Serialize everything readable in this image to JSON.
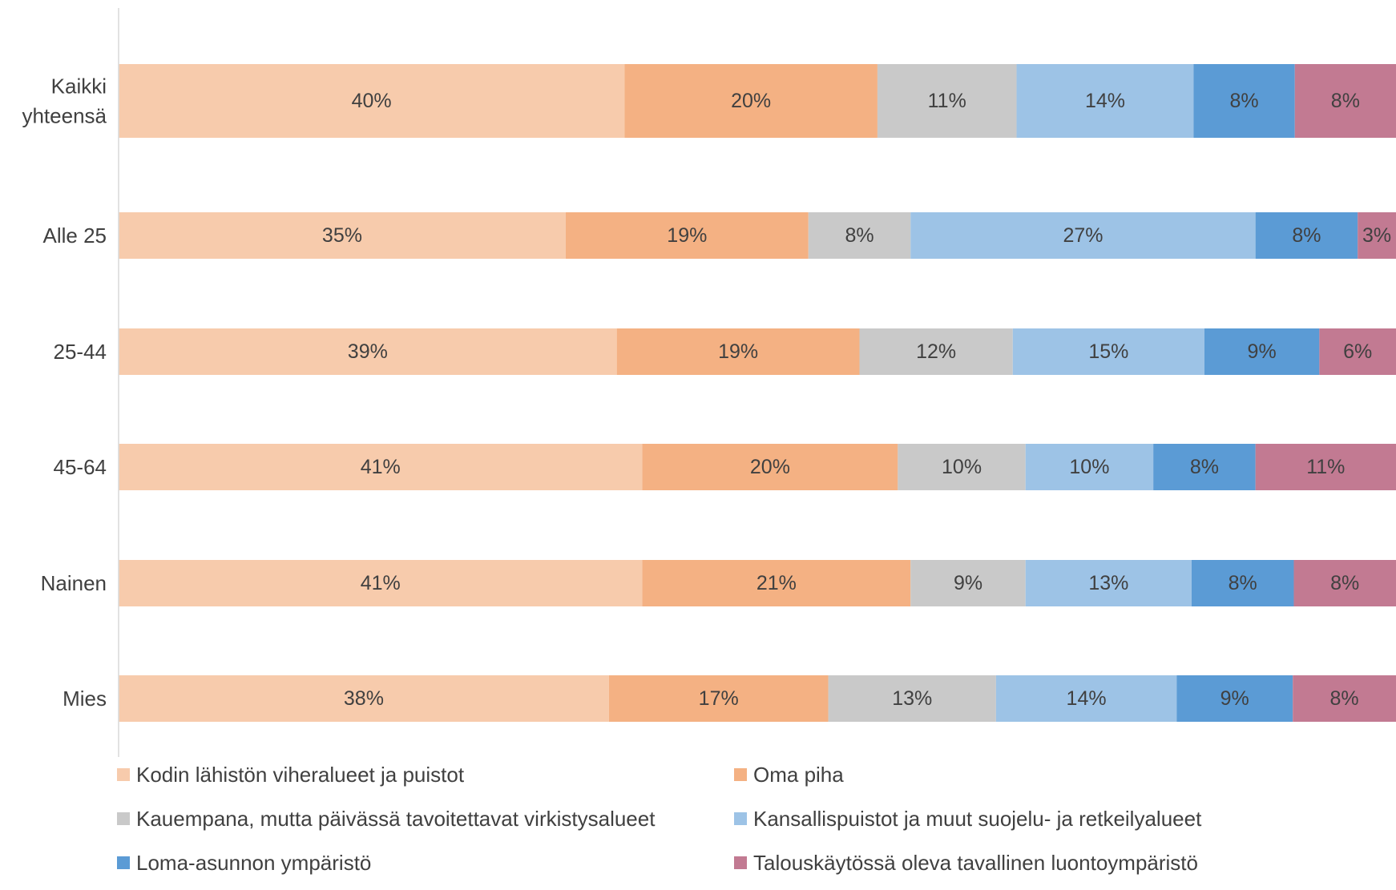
{
  "chart_data": {
    "type": "bar",
    "orientation": "horizontal",
    "stacked": true,
    "normalized": true,
    "categories": [
      "Kaikki yhteensä",
      "Alle 25",
      "25-44",
      "45-64",
      "Nainen",
      "Mies"
    ],
    "category_lines": [
      [
        "Kaikki",
        "yhteensä"
      ],
      [
        "Alle 25"
      ],
      [
        "25-44"
      ],
      [
        "45-64"
      ],
      [
        "Nainen"
      ],
      [
        "Mies"
      ]
    ],
    "series": [
      {
        "name": "Kodin lähistön viheralueet ja puistot",
        "color": "#F7CBAC",
        "values": [
          40,
          35,
          39,
          41,
          41,
          38
        ],
        "labels": [
          "40%",
          "35%",
          "39%",
          "41%",
          "41%",
          "38%"
        ]
      },
      {
        "name": "Oma piha",
        "color": "#F4B183",
        "values": [
          20,
          19,
          19,
          20,
          21,
          17
        ],
        "labels": [
          "20%",
          "19%",
          "19%",
          "20%",
          "21%",
          "17%"
        ]
      },
      {
        "name": "Kauempana, mutta päivässä tavoitettavat virkistysalueet",
        "color": "#C9C9C9",
        "values": [
          11,
          8,
          12,
          10,
          9,
          13
        ],
        "labels": [
          "11%",
          "8%",
          "12%",
          "10%",
          "9%",
          "13%"
        ]
      },
      {
        "name": "Kansallispuistot ja muut suojelu- ja retkeilyalueet",
        "color": "#9DC3E6",
        "values": [
          14,
          27,
          15,
          10,
          13,
          14
        ],
        "labels": [
          "14%",
          "27%",
          "15%",
          "10%",
          "13%",
          "14%"
        ]
      },
      {
        "name": "Loma-asunnon ympäristö",
        "color": "#5B9BD5",
        "values": [
          8,
          8,
          9,
          8,
          8,
          9
        ],
        "labels": [
          "8%",
          "8%",
          "9%",
          "8%",
          "8%",
          "9%"
        ]
      },
      {
        "name": "Talouskäytössä oleva tavallinen luontoympäristö",
        "color": "#C27A92",
        "values": [
          8,
          3,
          6,
          11,
          8,
          8
        ],
        "labels": [
          "8%",
          "3%",
          "6%",
          "11%",
          "8%",
          "8%"
        ]
      }
    ],
    "title": "",
    "xlabel": "",
    "ylabel": "",
    "grid": false,
    "legend_position": "bottom"
  }
}
